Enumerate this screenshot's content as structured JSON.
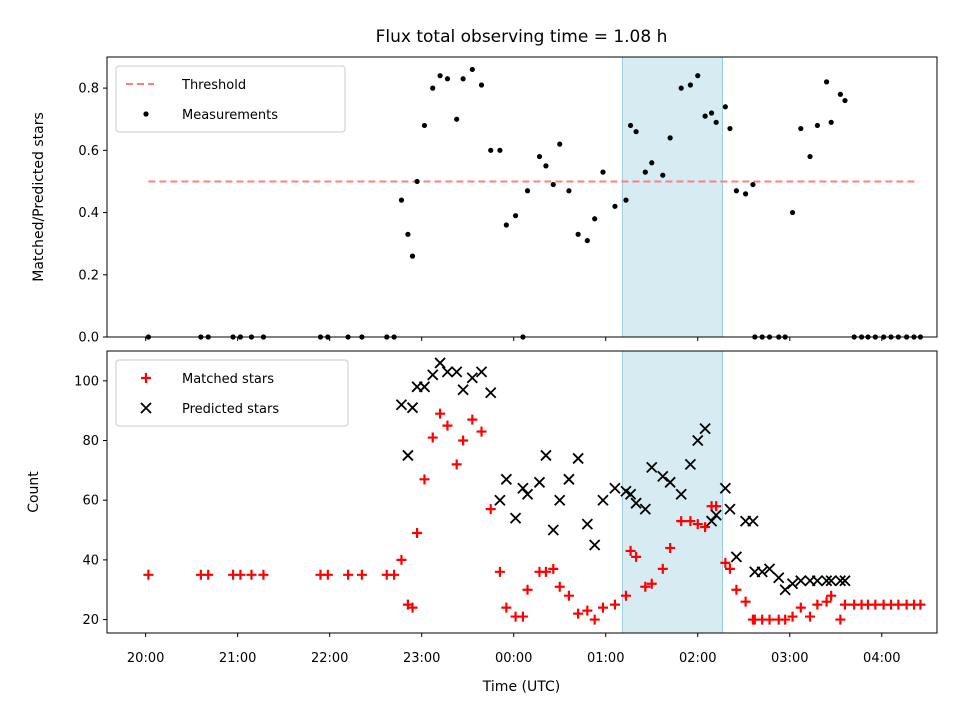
{
  "chart_data": {
    "type": "scatter",
    "title": "Flux total observing time = 1.08 h",
    "xlabel": "Time (UTC)",
    "x_unit": "hours after 20:00 UTC",
    "xticks": [
      "20:00",
      "21:00",
      "22:00",
      "23:00",
      "00:00",
      "01:00",
      "02:00",
      "03:00",
      "04:00"
    ],
    "xlim": [
      -0.42,
      8.6
    ],
    "highlight_span": {
      "x0": 5.18,
      "x1": 6.27,
      "color": "#add8e6"
    },
    "panels": [
      {
        "ylabel": "Matched/Predicted stars",
        "ylim": [
          0,
          0.9
        ],
        "yticks": [
          "0.0",
          "0.2",
          "0.4",
          "0.6",
          "0.8"
        ],
        "ytick_values": [
          0,
          0.2,
          0.4,
          0.6,
          0.8
        ],
        "legend": {
          "position": "upper-left",
          "entries": [
            "Threshold",
            "Measurements"
          ]
        },
        "threshold": {
          "name": "Threshold",
          "y": 0.5,
          "x0": 0.03,
          "x1": 8.4,
          "color": "#ff7f7f"
        },
        "series": [
          {
            "name": "Measurements",
            "marker": "dot",
            "color": "#000000",
            "x": [
              0.03,
              0.6,
              0.68,
              0.95,
              1.03,
              1.15,
              1.28,
              1.9,
              1.98,
              2.2,
              2.35,
              2.62,
              2.7,
              2.78,
              2.85,
              2.9,
              2.95,
              3.03,
              3.12,
              3.2,
              3.28,
              3.38,
              3.45,
              3.55,
              3.65,
              3.75,
              3.85,
              3.92,
              4.02,
              4.1,
              4.15,
              4.28,
              4.35,
              4.43,
              4.5,
              4.6,
              4.7,
              4.8,
              4.88,
              4.97,
              5.1,
              5.22,
              5.27,
              5.33,
              5.43,
              5.5,
              5.62,
              5.7,
              5.82,
              5.92,
              6.0,
              6.08,
              6.15,
              6.2,
              6.3,
              6.35,
              6.42,
              6.52,
              6.6,
              6.62,
              6.7,
              6.78,
              6.88,
              6.95,
              7.03,
              7.12,
              7.22,
              7.3,
              7.4,
              7.45,
              7.55,
              7.6,
              7.7,
              7.78,
              7.85,
              7.93,
              8.02,
              8.1,
              8.18,
              8.27,
              8.35,
              8.42
            ],
            "y": [
              0,
              0,
              0,
              0,
              0,
              0,
              0,
              0,
              0,
              0,
              0,
              0,
              0,
              0.44,
              0.33,
              0.26,
              0.5,
              0.68,
              0.8,
              0.84,
              0.83,
              0.7,
              0.83,
              0.86,
              0.81,
              0.6,
              0.6,
              0.36,
              0.39,
              0,
              0.47,
              0.58,
              0.55,
              0.49,
              0.62,
              0.47,
              0.33,
              0.31,
              0.38,
              0.53,
              0.42,
              0.44,
              0.68,
              0.66,
              0.53,
              0.56,
              0.52,
              0.64,
              0.8,
              0.81,
              0.84,
              0.71,
              0.72,
              0.69,
              0.74,
              0.67,
              0.47,
              0.46,
              0.49,
              0,
              0,
              0,
              0,
              0,
              0.4,
              0.67,
              0.58,
              0.68,
              0.82,
              0.69,
              0.78,
              0.76,
              0,
              0,
              0,
              0,
              0,
              0,
              0,
              0,
              0,
              0
            ]
          }
        ]
      },
      {
        "ylabel": "Count",
        "ylim": [
          15.5,
          110
        ],
        "yticks": [
          "20",
          "40",
          "60",
          "80",
          "100"
        ],
        "ytick_values": [
          20,
          40,
          60,
          80,
          100
        ],
        "legend": {
          "position": "upper-left",
          "entries": [
            "Matched stars",
            "Predicted stars"
          ]
        },
        "series": [
          {
            "name": "Matched stars",
            "marker": "plus",
            "color": "#ff0000",
            "x": [
              0.03,
              0.6,
              0.68,
              0.95,
              1.03,
              1.15,
              1.28,
              1.9,
              1.98,
              2.2,
              2.35,
              2.62,
              2.7,
              2.78,
              2.85,
              2.9,
              2.95,
              3.03,
              3.12,
              3.2,
              3.28,
              3.38,
              3.45,
              3.55,
              3.65,
              3.75,
              3.85,
              3.92,
              4.02,
              4.1,
              4.15,
              4.28,
              4.35,
              4.43,
              4.5,
              4.6,
              4.7,
              4.8,
              4.88,
              4.97,
              5.1,
              5.22,
              5.27,
              5.33,
              5.43,
              5.5,
              5.62,
              5.7,
              5.82,
              5.92,
              6.0,
              6.08,
              6.15,
              6.2,
              6.3,
              6.35,
              6.42,
              6.52,
              6.6,
              6.62,
              6.7,
              6.78,
              6.88,
              6.95,
              7.03,
              7.12,
              7.22,
              7.3,
              7.4,
              7.45,
              7.55,
              7.6,
              7.7,
              7.78,
              7.85,
              7.93,
              8.02,
              8.1,
              8.18,
              8.27,
              8.35,
              8.42
            ],
            "y": [
              35,
              35,
              35,
              35,
              35,
              35,
              35,
              35,
              35,
              35,
              35,
              35,
              35,
              40,
              25,
              24,
              49,
              67,
              81,
              89,
              85,
              72,
              80,
              87,
              83,
              57,
              36,
              24,
              21,
              21,
              30,
              36,
              36,
              37,
              31,
              28,
              22,
              23,
              20,
              24,
              25,
              28,
              43,
              41,
              31,
              32,
              37,
              44,
              53,
              53,
              52,
              51,
              58,
              58,
              39,
              37,
              30,
              26,
              20,
              20,
              20,
              20,
              20,
              20,
              21,
              24,
              21,
              25,
              26,
              28,
              20,
              25,
              25,
              25,
              25,
              25,
              25,
              25,
              25,
              25,
              25,
              25
            ]
          },
          {
            "name": "Predicted stars",
            "marker": "x",
            "color": "#000000",
            "x": [
              2.78,
              2.85,
              2.9,
              2.95,
              3.03,
              3.12,
              3.2,
              3.28,
              3.38,
              3.45,
              3.55,
              3.65,
              3.75,
              3.85,
              3.92,
              4.02,
              4.1,
              4.15,
              4.28,
              4.35,
              4.43,
              4.5,
              4.6,
              4.7,
              4.8,
              4.88,
              4.97,
              5.1,
              5.22,
              5.27,
              5.33,
              5.43,
              5.5,
              5.62,
              5.7,
              5.82,
              5.92,
              6.0,
              6.08,
              6.15,
              6.2,
              6.3,
              6.35,
              6.42,
              6.52,
              6.6,
              6.62,
              6.7,
              6.78,
              6.88,
              6.95,
              7.03,
              7.12,
              7.22,
              7.3,
              7.4,
              7.45,
              7.55,
              7.6
            ],
            "y": [
              92,
              75,
              91,
              98,
              98,
              102,
              106,
              103,
              103,
              97,
              101,
              103,
              96,
              60,
              67,
              54,
              64,
              62,
              66,
              75,
              50,
              60,
              67,
              74,
              52,
              45,
              60,
              64,
              63,
              62,
              59,
              57,
              71,
              68,
              66,
              62,
              72,
              80,
              84,
              53,
              55,
              64,
              57,
              41,
              53,
              53,
              36,
              36,
              37,
              34,
              30,
              32,
              33,
              33,
              33,
              33,
              33,
              33,
              33
            ]
          }
        ]
      }
    ]
  }
}
